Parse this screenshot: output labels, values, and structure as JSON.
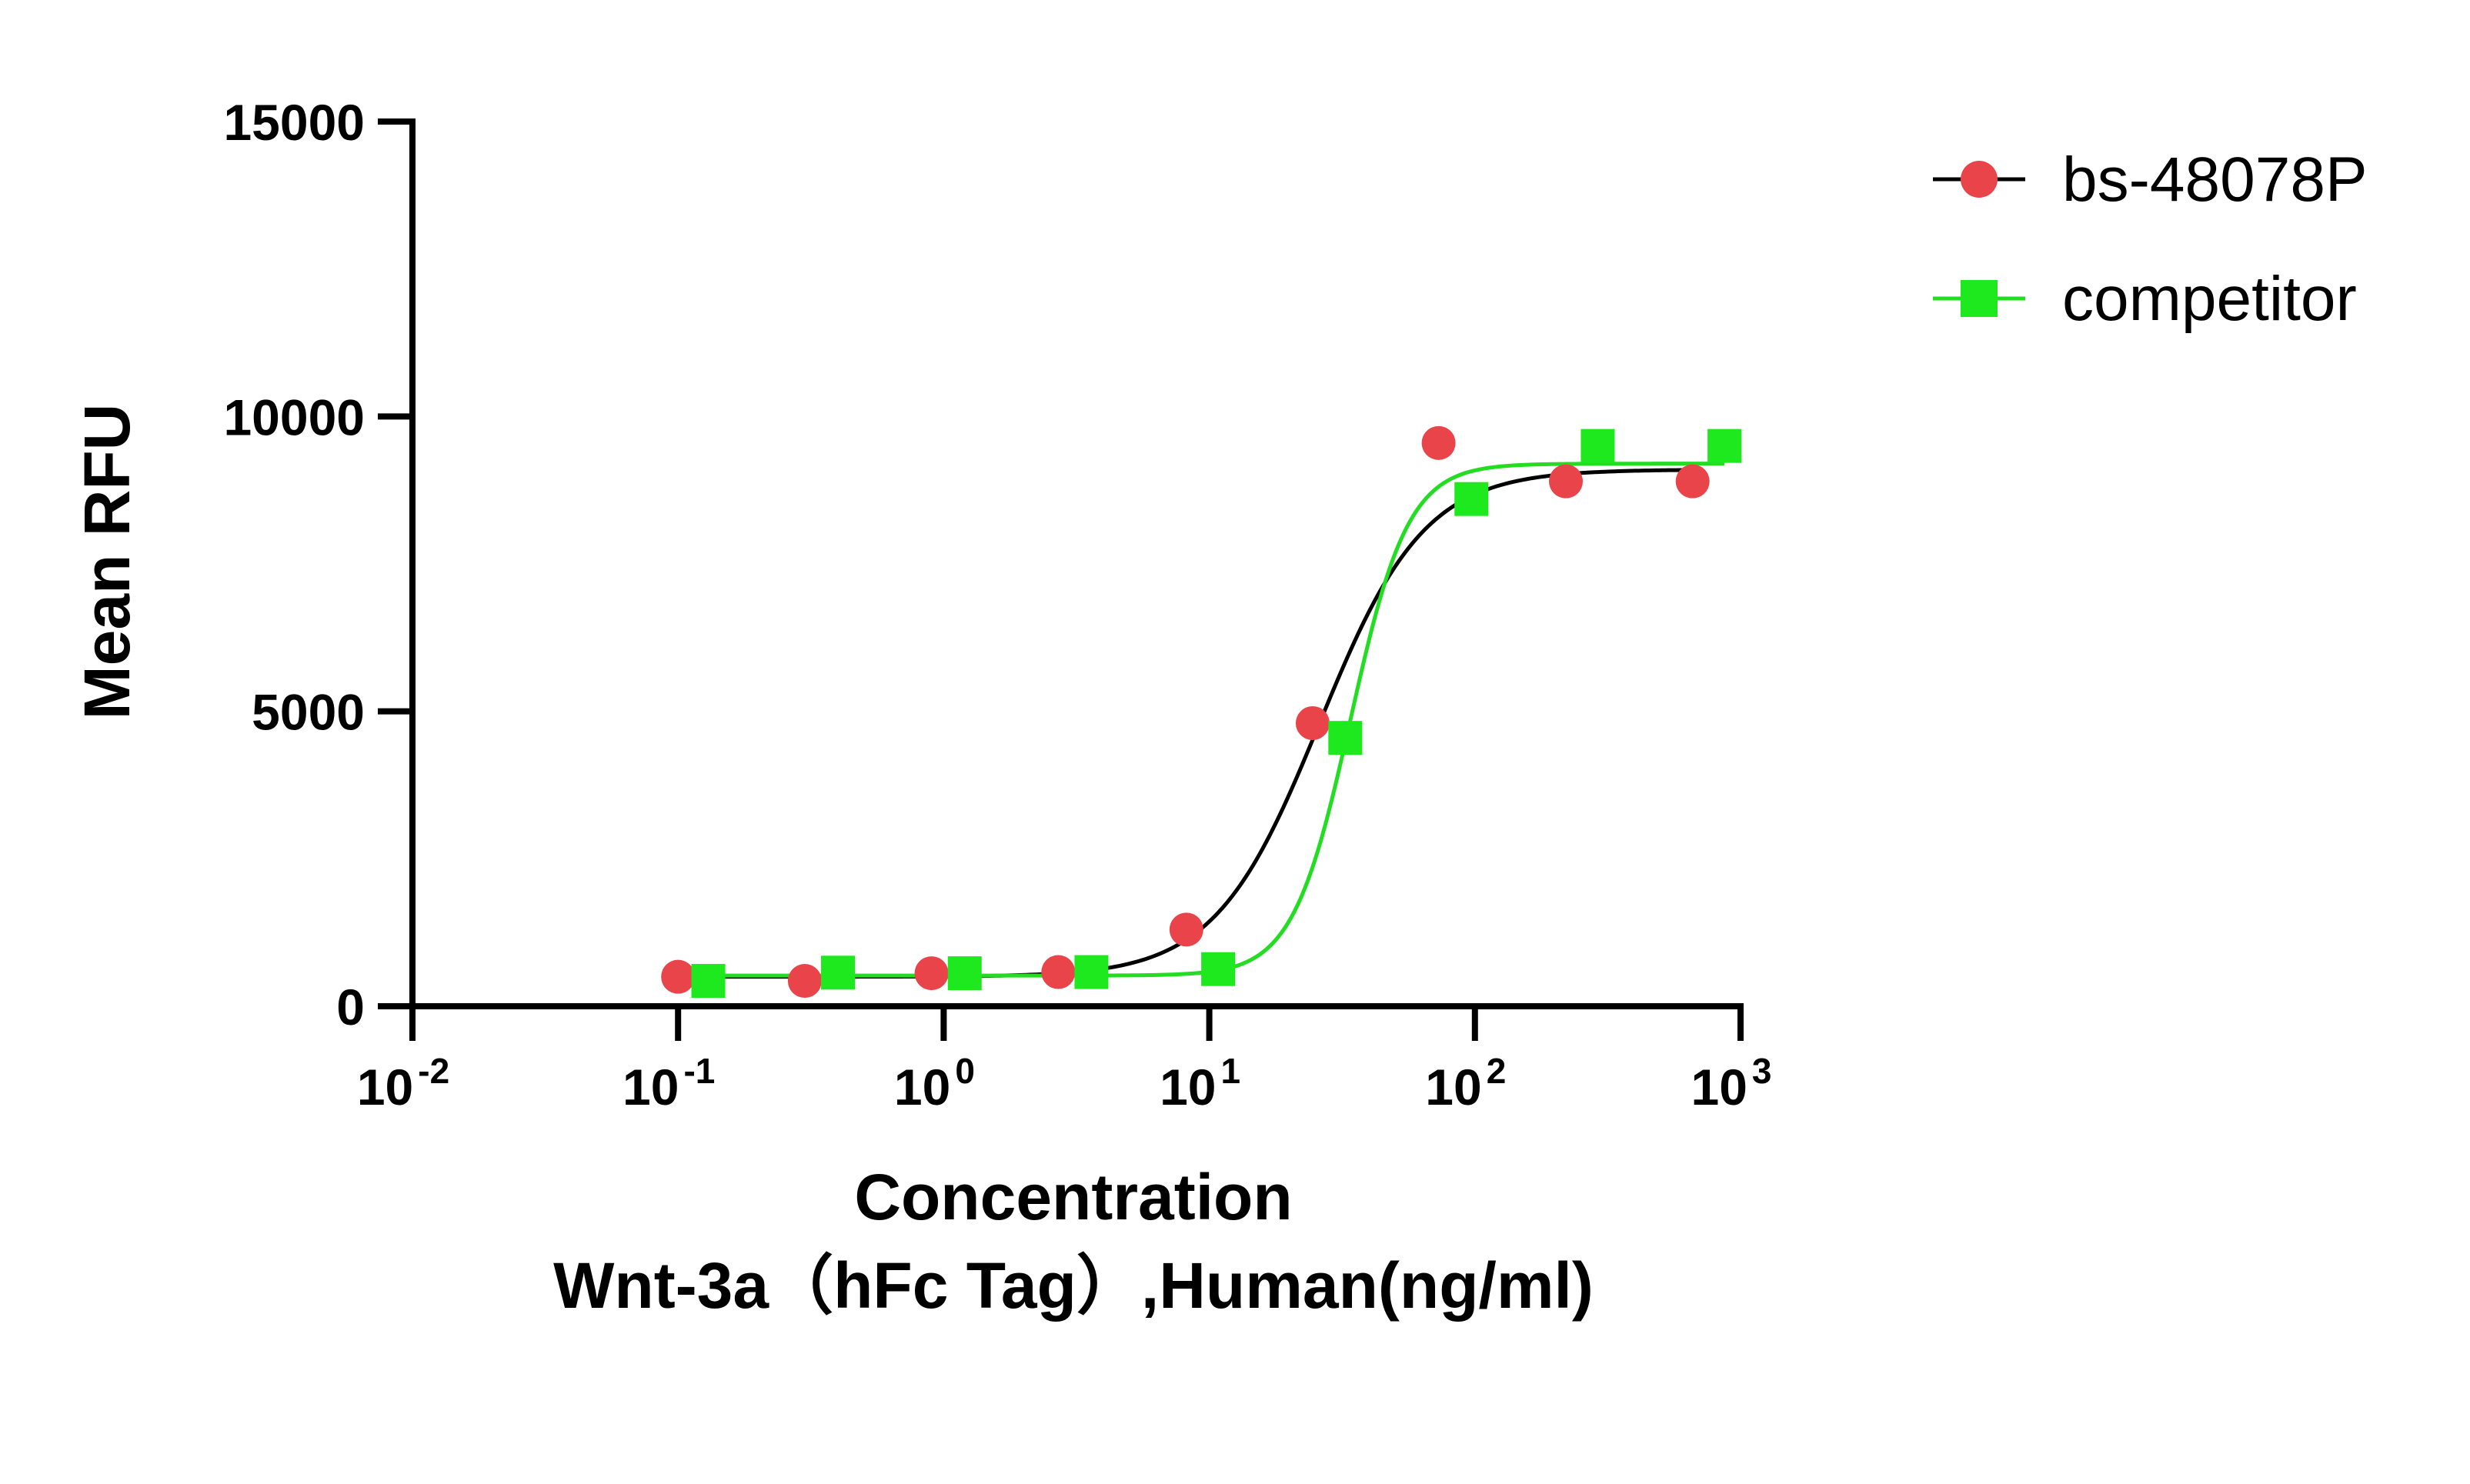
{
  "chart_data": {
    "type": "scatter",
    "ylabel": "Mean RFU",
    "xlabel_line1": "Concentration",
    "xlabel_line2": "Wnt-3a（hFc Tag）,Human(ng/ml)",
    "x_scale": "log10",
    "xlim": [
      0.01,
      1000
    ],
    "ylim": [
      0,
      15000
    ],
    "y_ticks": [
      0,
      5000,
      10000,
      15000
    ],
    "y_tick_labels": [
      "0",
      "5000",
      "10000",
      "15000"
    ],
    "x_ticks": [
      {
        "value": 0.01,
        "base": "10",
        "exp": "-2"
      },
      {
        "value": 0.1,
        "base": "10",
        "exp": "-1"
      },
      {
        "value": 1,
        "base": "10",
        "exp": "0"
      },
      {
        "value": 10,
        "base": "10",
        "exp": "1"
      },
      {
        "value": 100,
        "base": "10",
        "exp": "2"
      },
      {
        "value": 1000,
        "base": "10",
        "exp": "3"
      }
    ],
    "grid": false,
    "legend_position": "top-right",
    "series": [
      {
        "name": "bs-48078P",
        "marker": "circle",
        "marker_color": "#e8444a",
        "line_color": "#000000",
        "points": [
          {
            "x": 0.1,
            "y": 500
          },
          {
            "x": 0.3,
            "y": 430
          },
          {
            "x": 0.9,
            "y": 560
          },
          {
            "x": 2.7,
            "y": 580
          },
          {
            "x": 8.2,
            "y": 1300
          },
          {
            "x": 24.5,
            "y": 4800
          },
          {
            "x": 73,
            "y": 9550
          },
          {
            "x": 220,
            "y": 8900
          },
          {
            "x": 660,
            "y": 8900
          }
        ],
        "fit": {
          "bottom": 500,
          "top": 9100,
          "ec50": 26,
          "hill": 2.2
        }
      },
      {
        "name": "competitor",
        "marker": "square",
        "marker_color": "#1ee81e",
        "line_color": "#22dd22",
        "points": [
          {
            "x": 0.13,
            "y": 430
          },
          {
            "x": 0.4,
            "y": 570
          },
          {
            "x": 1.2,
            "y": 560
          },
          {
            "x": 3.6,
            "y": 580
          },
          {
            "x": 10.8,
            "y": 630
          },
          {
            "x": 32.5,
            "y": 4550
          },
          {
            "x": 97,
            "y": 8600
          },
          {
            "x": 290,
            "y": 9500
          },
          {
            "x": 870,
            "y": 9500
          }
        ],
        "fit": {
          "bottom": 520,
          "top": 9200,
          "ec50": 34,
          "hill": 4
        }
      }
    ]
  }
}
